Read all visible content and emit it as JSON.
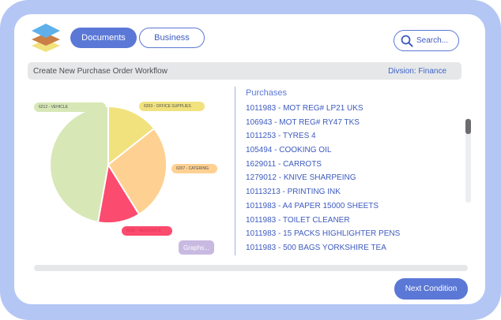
{
  "tabs": [
    {
      "label": "Documents",
      "active": true
    },
    {
      "label": "Business",
      "active": false
    }
  ],
  "search": {
    "placeholder": "Search...",
    "icon": "search-icon"
  },
  "workflow": {
    "title": "Create New Purchase Order Workflow",
    "division": "Divsion: Finance"
  },
  "pie": {
    "slices": [
      {
        "label": "6212 - VEHICLE",
        "color": "#d7e7b6"
      },
      {
        "label": "6203 - OFFICE SUPPLIES",
        "color": "#f1e27e"
      },
      {
        "label": "6207 - CATERING",
        "color": "#fed192"
      },
      {
        "label": "6205 - RESOURCE",
        "color": "#fb4b6e"
      }
    ]
  },
  "graphs_label": "Graphs...",
  "purchases": {
    "heading": "Purchases",
    "items": [
      "1011983 - MOT REG# LP21 UKS",
      "106943 - MOT REG# RY47 TKS",
      "1011253 - TYRES 4",
      "105494 - COOKING OIL",
      "1629011 - CARROTS",
      "1279012 - KNIVE SHARPEING",
      "10113213 - PRINTING INK",
      "1011983 - A4 PAPER 15000 SHEETS",
      "1011983 - TOILET CLEANER",
      "1011983 - 15 PACKS HIGHLIGHTER PENS",
      "1011983 - 500 BAGS YORKSHIRE TEA"
    ]
  },
  "next_button": "Next Condition",
  "colors": {
    "accent": "#5b78d6",
    "frame": "#b4c6f4",
    "logo_top": "#5fb0ea",
    "logo_mid": "#c97f45",
    "logo_bottom": "#f1e27e"
  }
}
